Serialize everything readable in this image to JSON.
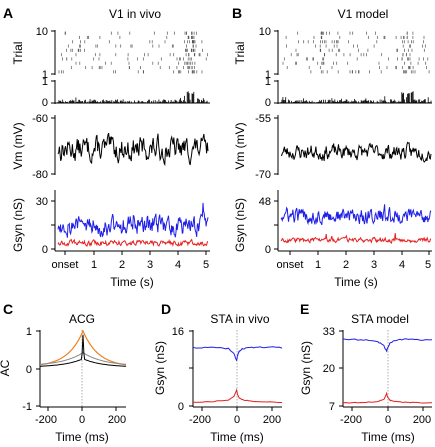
{
  "colors": {
    "black_trace": "#000000",
    "ge_trace": "#1f1fe6",
    "gi_trace": "#e61f1f",
    "acg_model": "#f08020",
    "zero_line": "#777777"
  },
  "chart_data": [
    {
      "panel": "A",
      "title": "V1 in vivo",
      "type": "raster",
      "ylabel": "Trial",
      "ytick_labels": [
        "10",
        "1"
      ],
      "x_range": [
        0,
        5
      ],
      "n_trials": 10
    },
    {
      "panel": "A",
      "type": "bar",
      "name": "psth",
      "ytick_labels": [
        "1",
        "0"
      ],
      "ylim": [
        0,
        1
      ],
      "x_range": [
        0,
        5
      ]
    },
    {
      "panel": "A",
      "type": "line",
      "ylabel": "Vm (mV)",
      "ytick_labels": [
        "-60",
        "-80"
      ],
      "ylim": [
        -80,
        -60
      ],
      "x_range": [
        0,
        5
      ]
    },
    {
      "panel": "A",
      "type": "line",
      "ylabel": "Gsyn (nS)",
      "xlabel": "Time (s)",
      "ytick_labels": [
        "30",
        "15",
        "0"
      ],
      "xtick_labels": [
        "onset",
        "1",
        "2",
        "3",
        "4",
        "5"
      ],
      "ylim": [
        0,
        30
      ],
      "x_range": [
        0,
        5
      ]
    },
    {
      "panel": "B",
      "title": "V1 model",
      "type": "raster",
      "ylabel": "Trial",
      "ytick_labels": [
        "10",
        "1"
      ],
      "x_range": [
        0,
        5
      ],
      "n_trials": 10
    },
    {
      "panel": "B",
      "type": "bar",
      "name": "psth",
      "ytick_labels": [
        "1",
        "0"
      ],
      "ylim": [
        0,
        1
      ],
      "x_range": [
        0,
        5
      ]
    },
    {
      "panel": "B",
      "type": "line",
      "ylabel": "Vm (mV)",
      "ytick_labels": [
        "-55",
        "-70"
      ],
      "ylim": [
        -70,
        -55
      ],
      "x_range": [
        0,
        5
      ]
    },
    {
      "panel": "B",
      "type": "line",
      "ylabel": "Gsyn (nS)",
      "xlabel": "Time (s)",
      "ytick_labels": [
        "48",
        "24",
        "0"
      ],
      "xtick_labels": [
        "onset",
        "1",
        "2",
        "3",
        "4",
        "5"
      ],
      "ylim": [
        0,
        48
      ],
      "x_range": [
        0,
        5
      ]
    },
    {
      "panel": "C",
      "title": "ACG",
      "type": "line",
      "ylabel": "AC",
      "xlabel": "Time (ms)",
      "ytick_labels": [
        "1",
        "0",
        "-1"
      ],
      "xtick_labels": [
        "-200",
        "0",
        "200"
      ],
      "ylim": [
        -1,
        1
      ],
      "xlim": [
        -250,
        250
      ]
    },
    {
      "panel": "D",
      "title": "STA in vivo",
      "type": "line",
      "ylabel": "Gsyn (nS)",
      "xlabel": "Time (ms)",
      "ytick_labels": [
        "16",
        "8",
        "0"
      ],
      "xtick_labels": [
        "-200",
        "0",
        "200"
      ],
      "ylim": [
        0,
        16
      ],
      "xlim": [
        -250,
        250
      ],
      "series": [
        {
          "x": [
            -250,
            -150,
            -50,
            -20,
            -5,
            0,
            10,
            30,
            80,
            150,
            250
          ],
          "values": [
            12.5,
            12.6,
            12.3,
            11.2,
            9.8,
            10.8,
            11.8,
            12.3,
            12.5,
            12.6,
            12.5
          ]
        },
        {
          "x": [
            -250,
            -150,
            -50,
            -20,
            -5,
            0,
            10,
            30,
            80,
            150,
            250
          ],
          "values": [
            1.0,
            1.1,
            1.5,
            2.2,
            3.6,
            2.6,
            1.9,
            1.5,
            1.2,
            1.1,
            1.0
          ]
        }
      ]
    },
    {
      "panel": "E",
      "title": "STA model",
      "type": "line",
      "ylabel": "Gsyn (nS)",
      "xlabel": "Time (ms)",
      "ytick_labels": [
        "33",
        "20",
        "7"
      ],
      "xtick_labels": [
        "-200",
        "0",
        "200"
      ],
      "ylim": [
        7,
        33
      ],
      "xlim": [
        -250,
        250
      ],
      "series": [
        {
          "x": [
            -250,
            -150,
            -60,
            -20,
            -5,
            0,
            15,
            40,
            100,
            150,
            250
          ],
          "values": [
            30.2,
            30.0,
            29.6,
            28.0,
            26.0,
            27.2,
            29.0,
            29.8,
            30.2,
            30.1,
            30.0
          ]
        },
        {
          "x": [
            -250,
            -150,
            -60,
            -20,
            -5,
            0,
            15,
            40,
            100,
            150,
            250
          ],
          "values": [
            8.4,
            8.5,
            8.8,
            9.6,
            11.6,
            10.4,
            9.3,
            8.9,
            8.6,
            8.5,
            8.4
          ]
        }
      ]
    }
  ]
}
